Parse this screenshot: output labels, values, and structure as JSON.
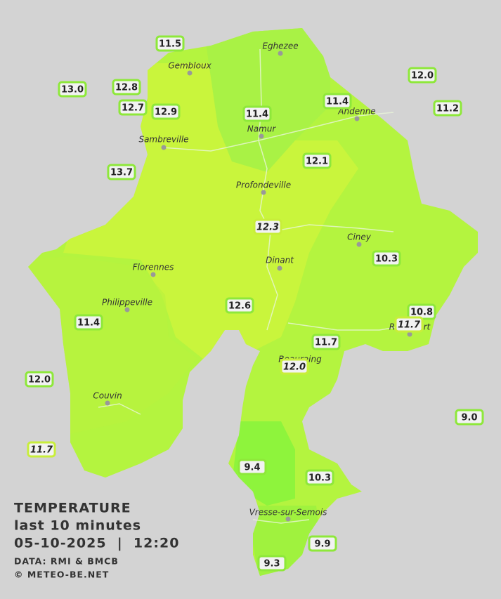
{
  "map": {
    "cities": [
      "Eghezee",
      "Gembloux",
      "Andenne",
      "Namur",
      "Sambreville",
      "Profondeville",
      "Ciney",
      "Dinant",
      "Florennes",
      "Philippeville",
      "Rochefort",
      "Beauraing",
      "Couvin",
      "Vresse-sur-Semois"
    ],
    "stations": {
      "values": [
        11.5,
        12.8,
        13.0,
        12.7,
        12.9,
        11.4,
        11.4,
        12.0,
        11.2,
        13.7,
        12.1,
        12.3,
        10.3,
        12.6,
        10.8,
        11.7,
        11.4,
        11.7,
        12.0,
        12.0,
        9.0,
        11.7,
        9.4,
        10.3,
        9.9,
        9.3
      ],
      "value_labels": [
        "11.5",
        "12.8",
        "13.0",
        "12.7",
        "12.9",
        "11.4",
        "11.4",
        "12.0",
        "11.2",
        "13.7",
        "12.1",
        "12.3",
        "10.3",
        "12.6",
        "10.8",
        "11.7",
        "11.4",
        "11.7",
        "12.0",
        "12.0",
        "9.0",
        "11.7",
        "9.4",
        "10.3",
        "9.9",
        "9.3"
      ]
    },
    "legend": {
      "title": "TEMPERATURE",
      "period": "last 10 minutes",
      "datetime": "05-10-2025  |  12:20",
      "source": "DATA: RMI & BMCB",
      "credit": "© METEO-BE.NET"
    }
  }
}
